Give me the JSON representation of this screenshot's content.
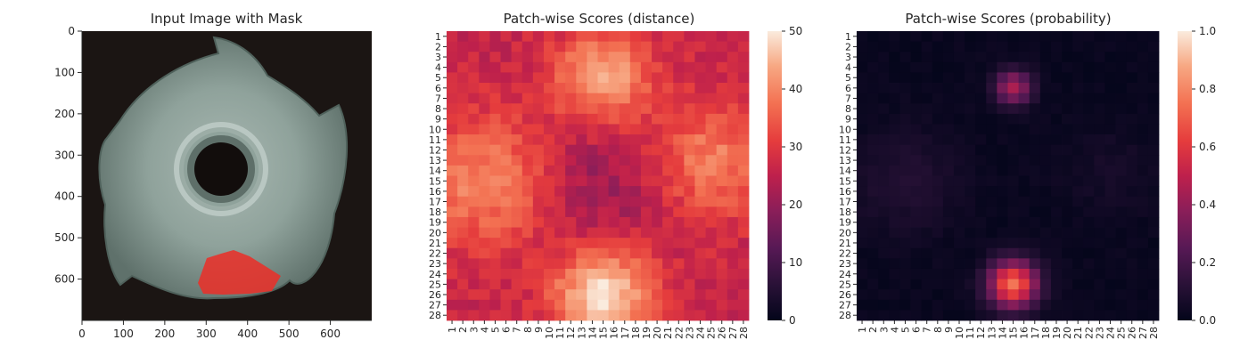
{
  "chart_data": [
    {
      "type": "image",
      "title": "Input Image with Mask",
      "xticks": [
        0,
        100,
        200,
        300,
        400,
        500,
        600
      ],
      "yticks": [
        0,
        100,
        200,
        300,
        400,
        500,
        600
      ],
      "xlim": [
        0,
        700
      ],
      "ylim": [
        700,
        0
      ],
      "mask_color": "#e8312a"
    },
    {
      "type": "heatmap",
      "title": "Patch-wise Scores (distance)",
      "rows": 28,
      "cols": 28,
      "tick_labels": [
        "1",
        "2",
        "3",
        "4",
        "5",
        "6",
        "7",
        "8",
        "9",
        "10",
        "11",
        "12",
        "13",
        "14",
        "15",
        "16",
        "17",
        "18",
        "19",
        "20",
        "21",
        "22",
        "23",
        "24",
        "25",
        "26",
        "27",
        "28"
      ],
      "colorbar": {
        "min": 0,
        "max": 50,
        "ticks": [
          0,
          10,
          20,
          30,
          40,
          50
        ],
        "tick_labels": [
          "0",
          "10",
          "20",
          "30",
          "40",
          "50"
        ]
      },
      "base_value": 26,
      "hotspots": [
        {
          "row": 5,
          "col": 15,
          "peak": 44,
          "radius": 3.2,
          "label": "top"
        },
        {
          "row": 26,
          "col": 15,
          "peak": 50,
          "radius": 3.2,
          "label": "bottom"
        },
        {
          "row": 15,
          "col": 4,
          "peak": 40,
          "radius": 4.5,
          "label": "left"
        },
        {
          "row": 13,
          "col": 25,
          "peak": 39,
          "radius": 4.0,
          "label": "right"
        }
      ],
      "center_dip": {
        "row": 15,
        "col": 15,
        "value": 20,
        "radius": 4.5
      }
    },
    {
      "type": "heatmap",
      "title": "Patch-wise Scores (probability)",
      "rows": 28,
      "cols": 28,
      "tick_labels": [
        "1",
        "2",
        "3",
        "4",
        "5",
        "6",
        "7",
        "8",
        "9",
        "10",
        "11",
        "12",
        "13",
        "14",
        "15",
        "16",
        "17",
        "18",
        "19",
        "20",
        "21",
        "22",
        "23",
        "24",
        "25",
        "26",
        "27",
        "28"
      ],
      "colorbar": {
        "min": 0.0,
        "max": 1.0,
        "ticks": [
          0.0,
          0.2,
          0.4,
          0.6,
          0.8,
          1.0
        ],
        "tick_labels": [
          "0.0",
          "0.2",
          "0.4",
          "0.6",
          "0.8",
          "1.0"
        ]
      },
      "base_value": 0.02,
      "hotspots": [
        {
          "row": 25,
          "col": 15,
          "peak": 0.75,
          "radius": 1.6,
          "label": "bottom-anomaly"
        },
        {
          "row": 6,
          "col": 15,
          "peak": 0.45,
          "radius": 1.2,
          "label": "top-anomaly"
        },
        {
          "row": 15,
          "col": 5,
          "peak": 0.1,
          "radius": 3.5,
          "label": "left-faint"
        },
        {
          "row": 14,
          "col": 24,
          "peak": 0.06,
          "radius": 3.0,
          "label": "right-faint"
        }
      ]
    }
  ]
}
